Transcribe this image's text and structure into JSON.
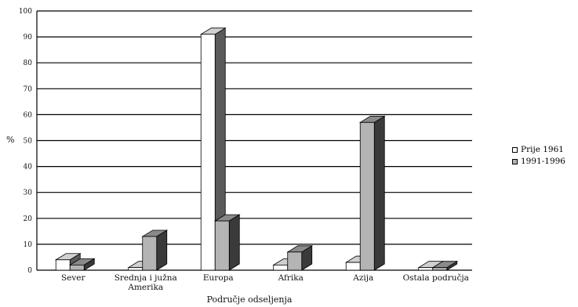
{
  "chart_data": {
    "type": "bar",
    "title": "",
    "xlabel": "Područje odseljenja",
    "ylabel": "%",
    "categories": [
      "Sever",
      "Srednja i južna Amerika",
      "Europa",
      "Afrika",
      "Azija",
      "Ostala područja"
    ],
    "category_lines": [
      [
        "Sever"
      ],
      [
        "Srednja i južna",
        "Amerika"
      ],
      [
        "Europa"
      ],
      [
        "Afrika"
      ],
      [
        "Azija"
      ],
      [
        "Ostala područja"
      ]
    ],
    "series": [
      {
        "name": "Prije 1961",
        "values": [
          4,
          1,
          91,
          2,
          3,
          1
        ],
        "color": "#ffffff"
      },
      {
        "name": "1991-1996",
        "values": [
          2,
          13,
          19,
          7,
          57,
          1
        ],
        "color": "#b4b4b4"
      }
    ],
    "ylim": [
      0,
      100
    ],
    "yticks": [
      0,
      10,
      20,
      30,
      40,
      50,
      60,
      70,
      80,
      90,
      100
    ],
    "grid": true,
    "legend_position": "right"
  }
}
